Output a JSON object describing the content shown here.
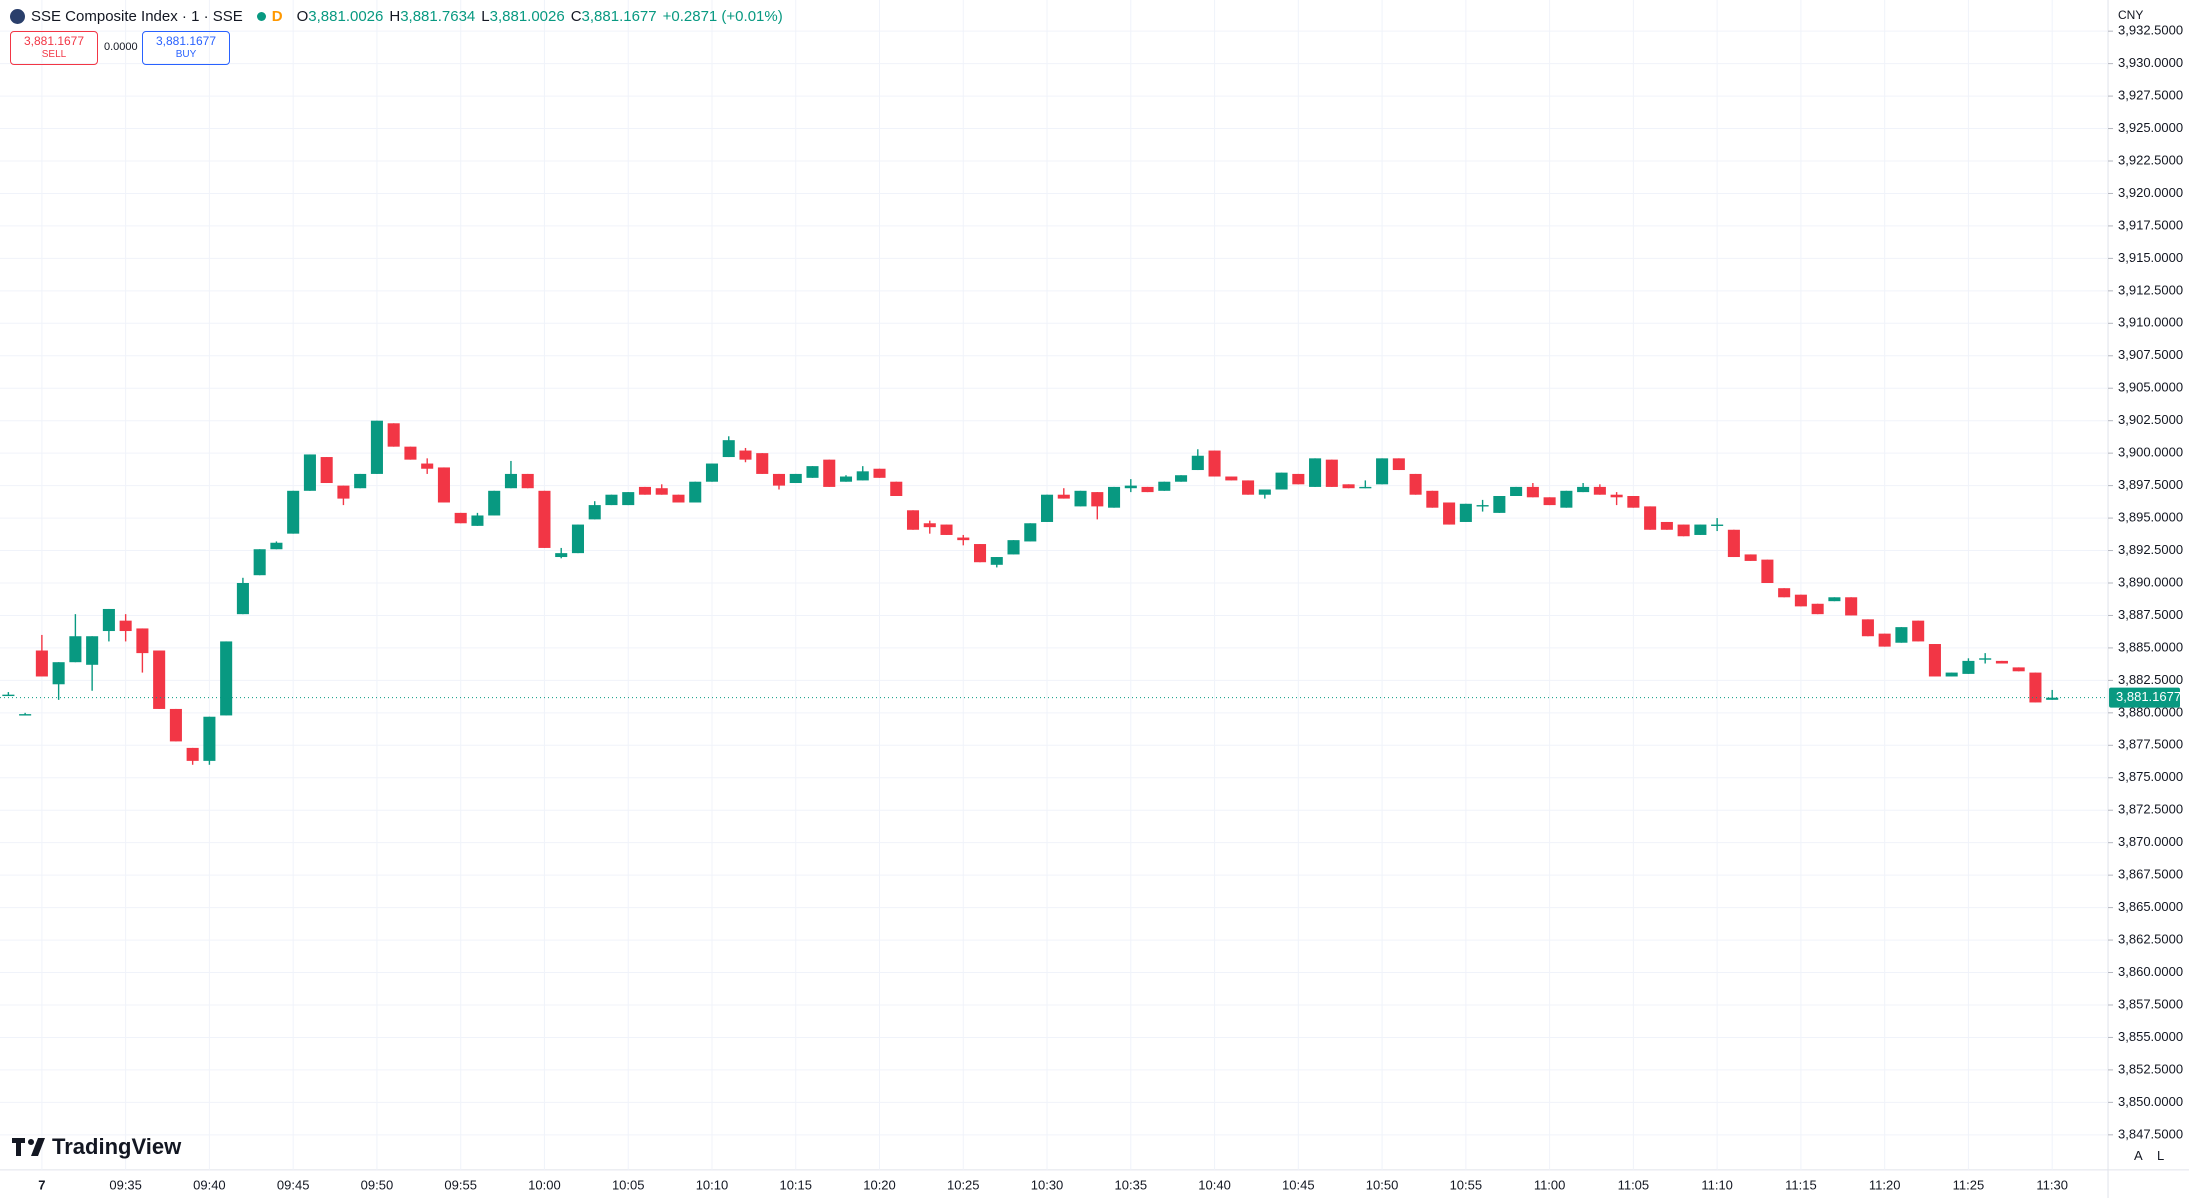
{
  "header": {
    "title": "SSE Composite Index · 1 · SSE",
    "interval_flag": "D",
    "o_label": "O",
    "open": "3,881.0026",
    "h_label": "H",
    "high": "3,881.7634",
    "l_label": "L",
    "low": "3,881.0026",
    "c_label": "C",
    "close": "3,881.1677",
    "change": "+0.2871 (+0.01%)"
  },
  "trade_panel": {
    "sell_price": "3,881.1677",
    "sell_label": "SELL",
    "spread": "0.0000",
    "buy_price": "3,881.1677",
    "buy_label": "BUY"
  },
  "price_axis": {
    "currency": "CNY",
    "last_price_label": "3,881.1677",
    "buttons": [
      "A",
      "L"
    ]
  },
  "logo": "TradingView",
  "chart_data": {
    "type": "candlestick",
    "up_color": "#089981",
    "down_color": "#f23645",
    "grid": true,
    "x": [
      "09:28",
      "09:29",
      "09:30",
      "09:31",
      "09:32",
      "09:33",
      "09:34",
      "09:35",
      "09:36",
      "09:37",
      "09:38",
      "09:39",
      "09:40",
      "09:41",
      "09:42",
      "09:43",
      "09:44",
      "09:45",
      "09:46",
      "09:47",
      "09:48",
      "09:49",
      "09:50",
      "09:51",
      "09:52",
      "09:53",
      "09:54",
      "09:55",
      "09:56",
      "09:57",
      "09:58",
      "09:59",
      "10:00",
      "10:01",
      "10:02",
      "10:03",
      "10:04",
      "10:05",
      "10:06",
      "10:07",
      "10:08",
      "10:09",
      "10:10",
      "10:11",
      "10:12",
      "10:13",
      "10:14",
      "10:15",
      "10:16",
      "10:17",
      "10:18",
      "10:19",
      "10:20",
      "10:21",
      "10:22",
      "10:23",
      "10:24",
      "10:25",
      "10:26",
      "10:27",
      "10:28",
      "10:29",
      "10:30",
      "10:31",
      "10:32",
      "10:33",
      "10:34",
      "10:35",
      "10:36",
      "10:37",
      "10:38",
      "10:39",
      "10:40",
      "10:41",
      "10:42",
      "10:43",
      "10:44",
      "10:45",
      "10:46",
      "10:47",
      "10:48",
      "10:49",
      "10:50",
      "10:51",
      "10:52",
      "10:53",
      "10:54",
      "10:55",
      "10:56",
      "10:57",
      "10:58",
      "10:59",
      "11:00",
      "11:01",
      "11:02",
      "11:03",
      "11:04",
      "11:05",
      "11:06",
      "11:07",
      "11:08",
      "11:09",
      "11:10",
      "11:11",
      "11:12",
      "11:13",
      "11:14",
      "11:15",
      "11:16",
      "11:17",
      "11:18",
      "11:19",
      "11:20",
      "11:21",
      "11:22",
      "11:23",
      "11:24",
      "11:25",
      "11:26",
      "11:27",
      "11:28",
      "11:29",
      "11:30"
    ],
    "open": [
      3881.4,
      3879.9,
      3884.8,
      3882.2,
      3883.9,
      3883.7,
      3886.3,
      3887.1,
      3886.5,
      3884.8,
      3880.3,
      3877.3,
      3876.3,
      3879.8,
      3887.6,
      3890.6,
      3892.6,
      3893.8,
      3897.1,
      3899.7,
      3897.5,
      3897.3,
      3898.4,
      3902.3,
      3900.5,
      3899.2,
      3898.9,
      3895.4,
      3894.4,
      3895.2,
      3897.3,
      3898.4,
      3897.1,
      3892.0,
      3892.3,
      3894.9,
      3896.0,
      3896.0,
      3897.4,
      3897.3,
      3896.8,
      3896.2,
      3897.8,
      3899.7,
      3900.2,
      3900.0,
      3898.4,
      3897.7,
      3898.1,
      3899.5,
      3897.8,
      3897.9,
      3898.8,
      3897.8,
      3895.6,
      3894.6,
      3894.5,
      3893.5,
      3893.0,
      3891.4,
      3892.2,
      3893.2,
      3894.7,
      3896.8,
      3895.9,
      3897.0,
      3895.8,
      3897.3,
      3897.4,
      3897.1,
      3897.8,
      3898.7,
      3900.2,
      3898.2,
      3897.9,
      3896.8,
      3897.2,
      3898.4,
      3897.4,
      3899.5,
      3897.6,
      3897.3,
      3897.6,
      3899.6,
      3898.4,
      3897.1,
      3896.2,
      3894.7,
      3895.9,
      3895.4,
      3896.7,
      3897.4,
      3896.6,
      3895.8,
      3897.0,
      3897.4,
      3896.8,
      3896.7,
      3895.9,
      3894.7,
      3894.5,
      3893.7,
      3894.4,
      3894.1,
      3892.2,
      3891.8,
      3889.6,
      3889.1,
      3888.4,
      3888.6,
      3888.9,
      3887.2,
      3886.1,
      3885.4,
      3887.1,
      3885.3,
      3882.8,
      3883.0,
      3884.1,
      3884.0,
      3883.5,
      3883.1,
      3881.0026
    ],
    "high": [
      3881.6,
      3880.0,
      3886.0,
      3883.9,
      3887.6,
      3885.9,
      3888.0,
      3887.6,
      3886.5,
      3884.8,
      3880.3,
      3877.3,
      3879.7,
      3885.5,
      3890.4,
      3892.6,
      3893.2,
      3897.1,
      3899.9,
      3899.7,
      3897.5,
      3898.4,
      3902.5,
      3902.3,
      3900.5,
      3899.6,
      3898.9,
      3895.4,
      3895.4,
      3897.1,
      3899.4,
      3898.4,
      3897.1,
      3892.7,
      3894.5,
      3896.3,
      3896.8,
      3897.0,
      3897.4,
      3897.6,
      3896.8,
      3897.8,
      3899.2,
      3901.3,
      3900.4,
      3900.0,
      3898.4,
      3898.4,
      3899.0,
      3899.5,
      3898.3,
      3899.0,
      3898.8,
      3897.8,
      3895.6,
      3894.8,
      3894.5,
      3893.7,
      3893.0,
      3892.0,
      3893.3,
      3894.6,
      3896.8,
      3897.3,
      3897.1,
      3897.0,
      3897.4,
      3898.0,
      3897.4,
      3897.8,
      3898.3,
      3900.3,
      3900.2,
      3898.2,
      3897.9,
      3897.2,
      3898.5,
      3898.4,
      3899.6,
      3899.5,
      3897.6,
      3897.9,
      3899.6,
      3899.6,
      3898.4,
      3897.1,
      3896.2,
      3896.1,
      3896.4,
      3896.7,
      3897.4,
      3897.7,
      3896.6,
      3897.1,
      3897.7,
      3897.6,
      3897.0,
      3896.7,
      3895.9,
      3894.7,
      3894.5,
      3894.5,
      3895.0,
      3894.1,
      3892.2,
      3891.8,
      3889.6,
      3889.1,
      3888.4,
      3888.9,
      3888.9,
      3887.2,
      3886.1,
      3886.6,
      3887.1,
      3885.3,
      3883.1,
      3884.2,
      3884.6,
      3884.0,
      3883.5,
      3883.1,
      3881.7634
    ],
    "low": [
      3881.3,
      3879.8,
      3882.8,
      3881.0,
      3883.9,
      3881.7,
      3885.5,
      3885.5,
      3883.1,
      3880.3,
      3877.8,
      3876.0,
      3876.0,
      3879.8,
      3887.6,
      3890.6,
      3892.6,
      3893.8,
      3897.1,
      3897.7,
      3896.0,
      3897.3,
      3898.4,
      3900.5,
      3899.5,
      3898.4,
      3896.2,
      3894.6,
      3894.4,
      3895.2,
      3897.3,
      3897.3,
      3892.7,
      3891.9,
      3892.3,
      3894.9,
      3896.0,
      3896.0,
      3896.8,
      3896.8,
      3896.2,
      3896.2,
      3897.8,
      3899.7,
      3899.3,
      3898.4,
      3897.2,
      3897.7,
      3898.1,
      3897.4,
      3897.8,
      3897.9,
      3898.1,
      3896.7,
      3894.1,
      3893.8,
      3893.7,
      3892.9,
      3891.6,
      3891.2,
      3892.2,
      3893.2,
      3894.7,
      3896.5,
      3895.9,
      3894.9,
      3895.8,
      3897.0,
      3897.0,
      3897.1,
      3897.8,
      3898.7,
      3898.2,
      3897.9,
      3896.8,
      3896.5,
      3897.2,
      3897.6,
      3897.4,
      3897.4,
      3897.3,
      3897.3,
      3897.6,
      3898.7,
      3896.8,
      3895.8,
      3894.5,
      3894.7,
      3895.5,
      3895.4,
      3896.7,
      3896.6,
      3896.0,
      3895.8,
      3897.0,
      3896.8,
      3896.0,
      3895.8,
      3894.1,
      3894.1,
      3893.6,
      3893.7,
      3894.0,
      3892.0,
      3891.7,
      3890.0,
      3888.9,
      3888.2,
      3887.6,
      3888.6,
      3887.5,
      3885.9,
      3885.1,
      3885.4,
      3885.5,
      3882.8,
      3882.8,
      3883.0,
      3883.8,
      3883.8,
      3883.2,
      3880.8,
      3881.0026
    ],
    "close": [
      3881.4,
      3879.9,
      3882.8,
      3883.9,
      3885.9,
      3885.9,
      3888.0,
      3886.3,
      3884.6,
      3880.3,
      3877.8,
      3876.3,
      3879.7,
      3885.5,
      3890.0,
      3892.6,
      3893.1,
      3897.1,
      3899.9,
      3897.7,
      3896.5,
      3898.4,
      3902.5,
      3900.5,
      3899.5,
      3898.8,
      3896.2,
      3894.6,
      3895.2,
      3897.1,
      3898.4,
      3897.3,
      3892.7,
      3892.3,
      3894.5,
      3896.0,
      3896.8,
      3897.0,
      3896.8,
      3896.8,
      3896.2,
      3897.8,
      3899.2,
      3901.0,
      3899.5,
      3898.4,
      3897.5,
      3898.4,
      3899.0,
      3897.4,
      3898.2,
      3898.6,
      3898.1,
      3896.7,
      3894.1,
      3894.3,
      3893.7,
      3893.3,
      3891.6,
      3892.0,
      3893.3,
      3894.6,
      3896.8,
      3896.5,
      3897.1,
      3895.9,
      3897.4,
      3897.5,
      3897.0,
      3897.8,
      3898.3,
      3899.8,
      3898.2,
      3897.9,
      3896.8,
      3897.2,
      3898.5,
      3897.6,
      3899.6,
      3897.4,
      3897.3,
      3897.4,
      3899.6,
      3898.7,
      3896.8,
      3895.8,
      3894.5,
      3896.1,
      3896.0,
      3896.7,
      3897.4,
      3896.6,
      3896.0,
      3897.1,
      3897.4,
      3896.8,
      3896.6,
      3895.8,
      3894.1,
      3894.1,
      3893.6,
      3894.5,
      3894.5,
      3892.0,
      3891.7,
      3890.0,
      3888.9,
      3888.2,
      3887.6,
      3888.9,
      3887.5,
      3885.9,
      3885.1,
      3886.6,
      3885.5,
      3882.8,
      3883.1,
      3884.0,
      3884.2,
      3883.8,
      3883.2,
      3880.8,
      3881.1677
    ],
    "xticks": [
      {
        "value": "09:30",
        "label": "7"
      },
      "09:35",
      "09:40",
      "09:45",
      "09:50",
      "09:55",
      "10:00",
      "10:05",
      "10:10",
      "10:15",
      "10:20",
      "10:25",
      "10:30",
      "10:35",
      "10:40",
      "10:45",
      "10:50",
      "10:55",
      "11:00",
      "11:05",
      "11:10",
      "11:15",
      "11:20",
      "11:25",
      "11:30"
    ],
    "ylim": [
      3844.8,
      3934.9
    ],
    "yticks": [
      {
        "value": 3847.5,
        "label": "3,847.5000"
      },
      {
        "value": 3850,
        "label": "3,850.0000"
      },
      {
        "value": 3852.5,
        "label": "3,852.5000"
      },
      {
        "value": 3855,
        "label": "3,855.0000"
      },
      {
        "value": 3857.5,
        "label": "3,857.5000"
      },
      {
        "value": 3860,
        "label": "3,860.0000"
      },
      {
        "value": 3862.5,
        "label": "3,862.5000"
      },
      {
        "value": 3865,
        "label": "3,865.0000"
      },
      {
        "value": 3867.5,
        "label": "3,867.5000"
      },
      {
        "value": 3870,
        "label": "3,870.0000"
      },
      {
        "value": 3872.5,
        "label": "3,872.5000"
      },
      {
        "value": 3875,
        "label": "3,875.0000"
      },
      {
        "value": 3877.5,
        "label": "3,877.5000"
      },
      {
        "value": 3880,
        "label": "3,880.0000"
      },
      {
        "value": 3882.5,
        "label": "3,882.5000"
      },
      {
        "value": 3885,
        "label": "3,885.0000"
      },
      {
        "value": 3887.5,
        "label": "3,887.5000"
      },
      {
        "value": 3890,
        "label": "3,890.0000"
      },
      {
        "value": 3892.5,
        "label": "3,892.5000"
      },
      {
        "value": 3895,
        "label": "3,895.0000"
      },
      {
        "value": 3897.5,
        "label": "3,897.5000"
      },
      {
        "value": 3900,
        "label": "3,900.0000"
      },
      {
        "value": 3902.5,
        "label": "3,902.5000"
      },
      {
        "value": 3905,
        "label": "3,905.0000"
      },
      {
        "value": 3907.5,
        "label": "3,907.5000"
      },
      {
        "value": 3910,
        "label": "3,910.0000"
      },
      {
        "value": 3912.5,
        "label": "3,912.5000"
      },
      {
        "value": 3915,
        "label": "3,915.0000"
      },
      {
        "value": 3917.5,
        "label": "3,917.5000"
      },
      {
        "value": 3920,
        "label": "3,920.0000"
      },
      {
        "value": 3922.5,
        "label": "3,922.5000"
      },
      {
        "value": 3925,
        "label": "3,925.0000"
      },
      {
        "value": 3927.5,
        "label": "3,927.5000"
      },
      {
        "value": 3930,
        "label": "3,930.0000"
      },
      {
        "value": 3932.5,
        "label": "3,932.5000"
      }
    ]
  }
}
